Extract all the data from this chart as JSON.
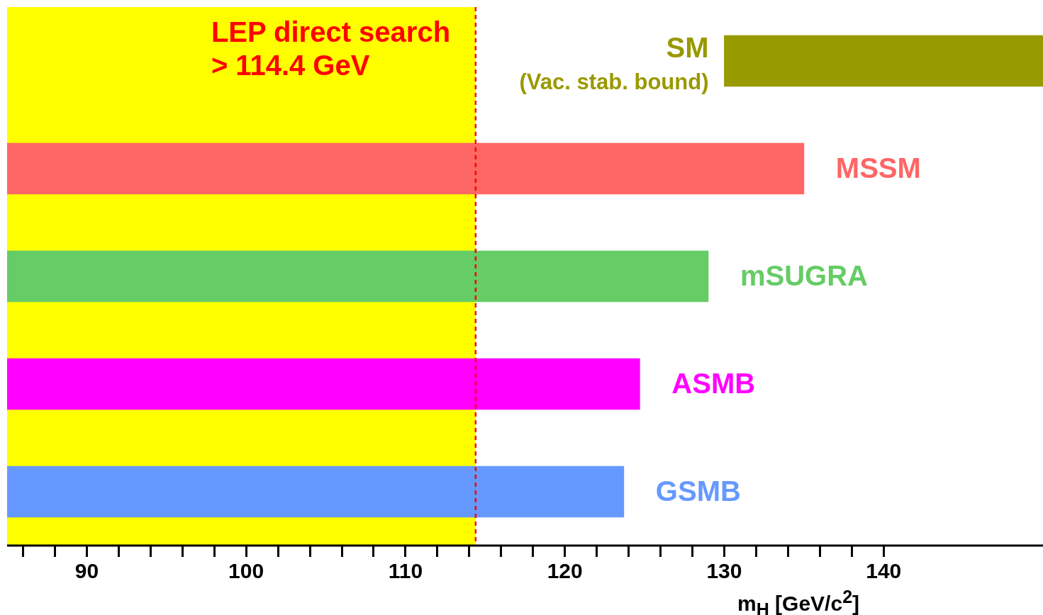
{
  "chart_data": {
    "type": "bar",
    "orientation": "horizontal",
    "xlabel": "m$_{H}$ [GeV/c$^{2}$]",
    "categories": [
      "SM\n(Vac. stab. bound)",
      "MSSM",
      "mSUGRA",
      "ASMB",
      "GSMB"
    ],
    "values": [
      20,
      50,
      44,
      39.7,
      38.7
    ],
    "base": [
      130,
      85,
      85,
      85,
      85
    ],
    "colors": [
      "#999900",
      "#ff6666",
      "#66cc66",
      "#ff00ff",
      "#6699ff"
    ],
    "xlim": [
      85,
      150
    ],
    "xticks": [
      {
        "value": 86,
        "label": null
      },
      {
        "value": 88,
        "label": null
      },
      90,
      {
        "value": 92,
        "label": null
      },
      {
        "value": 94,
        "label": null
      },
      {
        "value": 96,
        "label": null
      },
      {
        "value": 98,
        "label": null
      },
      100,
      {
        "value": 102,
        "label": null
      },
      {
        "value": 104,
        "label": null
      },
      {
        "value": 106,
        "label": null
      },
      {
        "value": 108,
        "label": null
      },
      110,
      {
        "value": 112,
        "label": null
      },
      {
        "value": 114,
        "label": null
      },
      {
        "value": 116,
        "label": null
      },
      {
        "value": 118,
        "label": null
      },
      120,
      {
        "value": 122,
        "label": null
      },
      {
        "value": 124,
        "label": null
      },
      {
        "value": 126,
        "label": null
      },
      {
        "value": 128,
        "label": null
      },
      130,
      {
        "value": 132,
        "label": null
      },
      {
        "value": 134,
        "label": null
      },
      {
        "value": 136,
        "label": null
      },
      {
        "value": 138,
        "label": null
      },
      140
    ],
    "bands": [
      {
        "axis": "x",
        "from": 85,
        "to": 114.4,
        "label": "LEP direct search\n> 114.4 GeV",
        "color": "#ffff00"
      }
    ],
    "ref_lines": [
      {
        "axis": "x",
        "value": 114.4,
        "color": "#ff0000",
        "line_style": "dashed"
      }
    ],
    "tick_labels": "x",
    "grid": false,
    "legend": false
  }
}
